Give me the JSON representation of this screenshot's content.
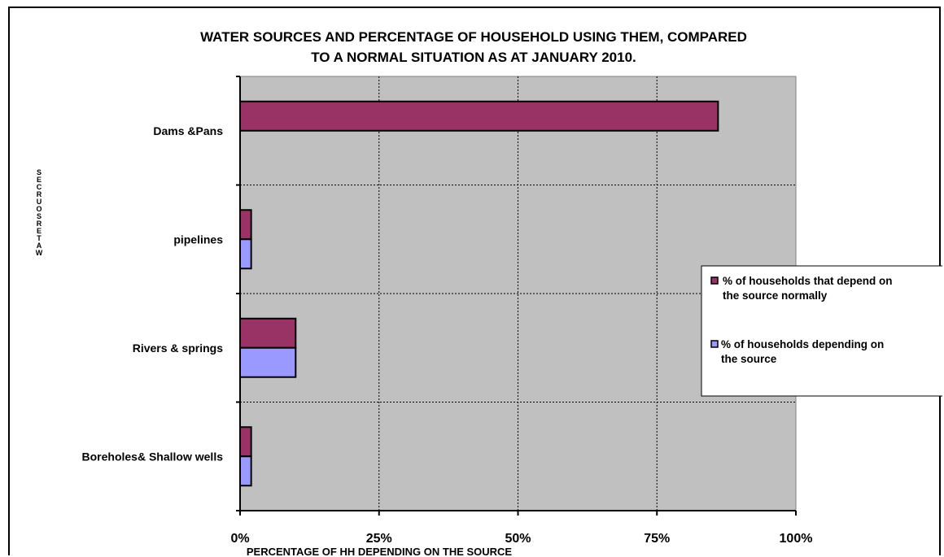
{
  "chart_data": {
    "type": "bar",
    "orientation": "horizontal",
    "title_lines": [
      "WATER SOURCES AND PERCENTAGE OF HOUSEHOLD USING THEM, COMPARED",
      "TO A NORMAL SITUATION AS AT JANUARY 2010."
    ],
    "xlabel": "PERCENTAGE OF HH DEPENDING ON THE SOURCE",
    "ylabel": "WATERSOURCES",
    "categories": [
      "Dams &Pans",
      "pipelines",
      "Rivers & springs",
      "Boreholes& Shallow wells"
    ],
    "x_ticks": [
      "0%",
      "25%",
      "50%",
      "75%",
      "100%"
    ],
    "xlim": [
      0,
      1
    ],
    "grid": true,
    "legend_position": "right",
    "series": [
      {
        "name_lines": [
          "% of households that depend on",
          "the source normally"
        ],
        "color": "#993366",
        "values": [
          0.86,
          0.02,
          0.1,
          0.02
        ]
      },
      {
        "name_lines": [
          "% of households depending on",
          "the source"
        ],
        "color": "#9999ff",
        "values": [
          null,
          0.02,
          0.1,
          0.02
        ]
      }
    ],
    "plot_background": "#c0c0c0"
  }
}
